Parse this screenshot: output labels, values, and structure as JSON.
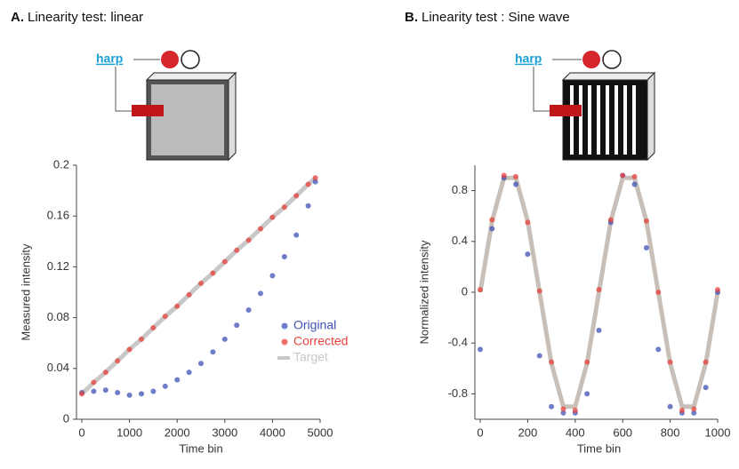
{
  "chart_data": [
    {
      "type": "line",
      "panel": "A.",
      "title": "Linearity test: linear",
      "x_label": "Time bin",
      "y_label": "Measured intensity",
      "x": [
        0,
        250,
        500,
        750,
        1000,
        1250,
        1500,
        1750,
        2000,
        2250,
        2500,
        2750,
        3000,
        3250,
        3500,
        3750,
        4000,
        4250,
        4500,
        4750,
        4900
      ],
      "series": [
        {
          "name": "Original",
          "color": "#3f51b5",
          "mode": "markers",
          "values": [
            0.021,
            0.022,
            0.023,
            0.021,
            0.019,
            0.02,
            0.022,
            0.026,
            0.031,
            0.037,
            0.044,
            0.053,
            0.063,
            0.074,
            0.086,
            0.099,
            0.113,
            0.128,
            0.145,
            0.168,
            0.187
          ]
        },
        {
          "name": "Corrected",
          "color": "#e8413c",
          "mode": "markers",
          "values": [
            0.02,
            0.029,
            0.037,
            0.046,
            0.055,
            0.063,
            0.072,
            0.081,
            0.089,
            0.098,
            0.107,
            0.115,
            0.124,
            0.133,
            0.141,
            0.15,
            0.159,
            0.167,
            0.176,
            0.185,
            0.19
          ]
        },
        {
          "name": "Target",
          "color": "#c8c8c8",
          "mode": "line",
          "values": [
            0.02,
            0.029,
            0.037,
            0.046,
            0.055,
            0.063,
            0.072,
            0.081,
            0.089,
            0.098,
            0.107,
            0.115,
            0.124,
            0.133,
            0.141,
            0.15,
            0.159,
            0.167,
            0.176,
            0.185,
            0.19
          ]
        }
      ],
      "xlim": [
        0,
        5000
      ],
      "xticks": [
        0,
        1000,
        2000,
        3000,
        4000,
        5000
      ],
      "ylim": [
        0,
        0.2
      ],
      "yticks": [
        0,
        0.04,
        0.08,
        0.12,
        0.16,
        0.2
      ],
      "legend": "lower right"
    },
    {
      "type": "line",
      "panel": "B.",
      "title": "Linearity test : Sine wave",
      "x_label": "Time bin",
      "y_label": "Normalized intensity",
      "x": [
        0,
        50,
        100,
        150,
        200,
        250,
        300,
        350,
        400,
        450,
        500,
        550,
        600,
        650,
        700,
        750,
        800,
        850,
        900,
        950,
        1000
      ],
      "series": [
        {
          "color": "#c8c0b8",
          "mode": "line",
          "values": [
            0,
            0.56,
            0.9,
            0.9,
            0.56,
            0,
            -0.56,
            -0.9,
            -0.9,
            -0.56,
            0,
            0.56,
            0.9,
            0.9,
            0.56,
            0,
            -0.56,
            -0.9,
            -0.9,
            -0.56,
            0
          ]
        },
        {
          "color": "#3f51b5",
          "mode": "markers",
          "values": [
            -0.45,
            0.5,
            0.9,
            0.85,
            0.3,
            -0.5,
            -0.9,
            -0.95,
            -0.95,
            -0.8,
            -0.3,
            0.55,
            0.92,
            0.85,
            0.35,
            -0.45,
            -0.9,
            -0.95,
            -0.95,
            -0.75,
            0
          ]
        },
        {
          "color": "#e8413c",
          "mode": "markers",
          "values": [
            0.02,
            0.57,
            0.92,
            0.91,
            0.55,
            0.01,
            -0.55,
            -0.92,
            -0.93,
            -0.55,
            0.02,
            0.57,
            0.92,
            0.91,
            0.56,
            0,
            -0.55,
            -0.93,
            -0.92,
            -0.55,
            0.02
          ]
        }
      ],
      "xlim": [
        0,
        1000
      ],
      "xticks": [
        0,
        200,
        400,
        600,
        800,
        1000
      ],
      "ylim": [
        -1,
        1
      ],
      "yticks": [
        -0.8,
        -0.4,
        0,
        0.4,
        0.8
      ],
      "legend": "none"
    }
  ],
  "diagrams": [
    {
      "label": "harp"
    },
    {
      "label": "harp"
    }
  ]
}
